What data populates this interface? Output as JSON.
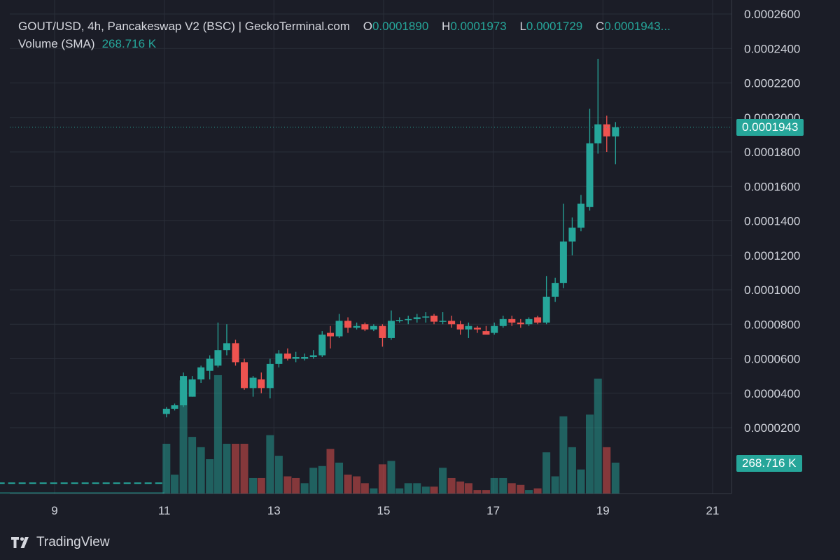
{
  "header": {
    "symbol_line": "GOUT/USD, 4h, Pancakeswap V2 (BSC) | GeckoTerminal.com",
    "o_label": "O",
    "o_value": "0.0001890",
    "h_label": "H",
    "h_value": "0.0001973",
    "l_label": "L",
    "l_value": "0.0001729",
    "c_label": "C",
    "c_value": "0.0001943..."
  },
  "volume_legend": {
    "label": "Volume (SMA)",
    "value": "268.716 K"
  },
  "price_tag": "0.0001943",
  "volume_tag": "268.716 K",
  "branding": {
    "logo_icon": "tradingview-logo-icon",
    "text": "TradingView"
  },
  "colors": {
    "up": "#26a69a",
    "down": "#ef5350",
    "background": "#1b1d27",
    "grid": "#2a2e39",
    "text": "#d1d4dc"
  },
  "chart_data": {
    "type": "candlestick",
    "interval": "4h",
    "x_tick_labels": [
      "9",
      "11",
      "13",
      "15",
      "17",
      "19",
      "21"
    ],
    "x_tick_days": [
      9,
      11,
      13,
      15,
      17,
      19,
      21
    ],
    "y_tick_labels": [
      "0.0000200",
      "0.0000400",
      "0.0000600",
      "0.0000800",
      "0.0001000",
      "0.0001200",
      "0.0001400",
      "0.0001600",
      "0.0001800",
      "0.0002000",
      "0.0002200",
      "0.0002400",
      "0.0002600"
    ],
    "ylim": [
      -3.85e-05,
      0.00026
    ],
    "grid": true,
    "last_price": 0.0001943,
    "volume_sma_last": 268716,
    "candles": [
      {
        "day": 11.04,
        "o": 2.8e-05,
        "h": 3.2e-05,
        "l": 2.6e-05,
        "c": 3.1e-05
      },
      {
        "day": 11.19,
        "o": 3.1e-05,
        "h": 3.4e-05,
        "l": 3e-05,
        "c": 3.3e-05
      },
      {
        "day": 11.35,
        "o": 3.3e-05,
        "h": 5.2e-05,
        "l": 3.2e-05,
        "c": 5e-05
      },
      {
        "day": 11.51,
        "o": 3.8e-05,
        "h": 5e-05,
        "l": 3.8e-05,
        "c": 4.8e-05
      },
      {
        "day": 11.67,
        "o": 4.8e-05,
        "h": 5.6e-05,
        "l": 4.6e-05,
        "c": 5.5e-05
      },
      {
        "day": 11.83,
        "o": 5.3e-05,
        "h": 6.2e-05,
        "l": 4.8e-05,
        "c": 6e-05
      },
      {
        "day": 11.98,
        "o": 5.6e-05,
        "h": 8.1e-05,
        "l": 5.5e-05,
        "c": 6.5e-05
      },
      {
        "day": 12.14,
        "o": 6.5e-05,
        "h": 8e-05,
        "l": 6.2e-05,
        "c": 6.9e-05
      },
      {
        "day": 12.3,
        "o": 6.9e-05,
        "h": 7.1e-05,
        "l": 5.6e-05,
        "c": 5.8e-05
      },
      {
        "day": 12.46,
        "o": 5.8e-05,
        "h": 6e-05,
        "l": 4.2e-05,
        "c": 4.3e-05
      },
      {
        "day": 12.62,
        "o": 4.3e-05,
        "h": 5e-05,
        "l": 3.8e-05,
        "c": 4.9e-05
      },
      {
        "day": 12.77,
        "o": 4.8e-05,
        "h": 5.2e-05,
        "l": 4e-05,
        "c": 4.3e-05
      },
      {
        "day": 12.93,
        "o": 4.3e-05,
        "h": 6e-05,
        "l": 3.7e-05,
        "c": 5.7e-05
      },
      {
        "day": 13.09,
        "o": 5.7e-05,
        "h": 6.5e-05,
        "l": 5.5e-05,
        "c": 6.3e-05
      },
      {
        "day": 13.25,
        "o": 6.3e-05,
        "h": 6.6e-05,
        "l": 5.9e-05,
        "c": 6e-05
      },
      {
        "day": 13.4,
        "o": 6e-05,
        "h": 6.4e-05,
        "l": 5.8e-05,
        "c": 6.1e-05
      },
      {
        "day": 13.56,
        "o": 6e-05,
        "h": 6.3e-05,
        "l": 5.9e-05,
        "c": 6.1e-05
      },
      {
        "day": 13.72,
        "o": 6.1e-05,
        "h": 6.5e-05,
        "l": 6e-05,
        "c": 6.2e-05
      },
      {
        "day": 13.88,
        "o": 6.2e-05,
        "h": 7.6e-05,
        "l": 6.1e-05,
        "c": 7.4e-05
      },
      {
        "day": 14.03,
        "o": 7.5e-05,
        "h": 7.9e-05,
        "l": 6.6e-05,
        "c": 7.3e-05
      },
      {
        "day": 14.19,
        "o": 7.3e-05,
        "h": 8.6e-05,
        "l": 7.2e-05,
        "c": 8.2e-05
      },
      {
        "day": 14.35,
        "o": 8.2e-05,
        "h": 8.4e-05,
        "l": 7.5e-05,
        "c": 7.8e-05
      },
      {
        "day": 14.51,
        "o": 7.8e-05,
        "h": 8.1e-05,
        "l": 7.7e-05,
        "c": 7.9e-05
      },
      {
        "day": 14.66,
        "o": 8e-05,
        "h": 8.1e-05,
        "l": 7.6e-05,
        "c": 7.7e-05
      },
      {
        "day": 14.82,
        "o": 7.7e-05,
        "h": 8e-05,
        "l": 7.6e-05,
        "c": 7.9e-05
      },
      {
        "day": 14.98,
        "o": 7.9e-05,
        "h": 8e-05,
        "l": 6.7e-05,
        "c": 7.2e-05
      },
      {
        "day": 15.14,
        "o": 7.2e-05,
        "h": 8.8e-05,
        "l": 7.1e-05,
        "c": 8.2e-05
      },
      {
        "day": 15.29,
        "o": 8.2e-05,
        "h": 8.4e-05,
        "l": 8.1e-05,
        "c": 8.25e-05
      },
      {
        "day": 15.45,
        "o": 8.25e-05,
        "h": 8.5e-05,
        "l": 8e-05,
        "c": 8.3e-05
      },
      {
        "day": 15.61,
        "o": 8.3e-05,
        "h": 8.6e-05,
        "l": 8.1e-05,
        "c": 8.4e-05
      },
      {
        "day": 15.77,
        "o": 8.4e-05,
        "h": 8.7e-05,
        "l": 8.1e-05,
        "c": 8.45e-05
      },
      {
        "day": 15.92,
        "o": 8.5e-05,
        "h": 8.6e-05,
        "l": 8e-05,
        "c": 8.15e-05
      },
      {
        "day": 16.08,
        "o": 8.15e-05,
        "h": 8.7e-05,
        "l": 8e-05,
        "c": 8.2e-05
      },
      {
        "day": 16.24,
        "o": 8.2e-05,
        "h": 8.5e-05,
        "l": 7.8e-05,
        "c": 8e-05
      },
      {
        "day": 16.4,
        "o": 8e-05,
        "h": 8.2e-05,
        "l": 7.4e-05,
        "c": 7.7e-05
      },
      {
        "day": 16.55,
        "o": 7.7e-05,
        "h": 8.1e-05,
        "l": 7.2e-05,
        "c": 7.9e-05
      },
      {
        "day": 16.71,
        "o": 7.8e-05,
        "h": 7.9e-05,
        "l": 7.5e-05,
        "c": 7.7e-05
      },
      {
        "day": 16.87,
        "o": 7.6e-05,
        "h": 7.9e-05,
        "l": 7.4e-05,
        "c": 7.4e-05
      },
      {
        "day": 17.02,
        "o": 7.5e-05,
        "h": 8.1e-05,
        "l": 7.4e-05,
        "c": 7.9e-05
      },
      {
        "day": 17.18,
        "o": 7.9e-05,
        "h": 8.5e-05,
        "l": 7.8e-05,
        "c": 8.3e-05
      },
      {
        "day": 17.34,
        "o": 8.3e-05,
        "h": 8.5e-05,
        "l": 7.9e-05,
        "c": 8.1e-05
      },
      {
        "day": 17.5,
        "o": 8.1e-05,
        "h": 8.3e-05,
        "l": 7.8e-05,
        "c": 8e-05
      },
      {
        "day": 17.65,
        "o": 8e-05,
        "h": 8.4e-05,
        "l": 7.9e-05,
        "c": 8.3e-05
      },
      {
        "day": 17.81,
        "o": 8.4e-05,
        "h": 8.5e-05,
        "l": 8e-05,
        "c": 8.1e-05
      },
      {
        "day": 17.97,
        "o": 8.1e-05,
        "h": 0.000108,
        "l": 8e-05,
        "c": 9.6e-05
      },
      {
        "day": 18.13,
        "o": 9.6e-05,
        "h": 0.000107,
        "l": 9.3e-05,
        "c": 0.000104
      },
      {
        "day": 18.28,
        "o": 0.000104,
        "h": 0.00015,
        "l": 0.000101,
        "c": 0.000128
      },
      {
        "day": 18.44,
        "o": 0.000128,
        "h": 0.000142,
        "l": 0.00012,
        "c": 0.000136
      },
      {
        "day": 18.6,
        "o": 0.000136,
        "h": 0.000155,
        "l": 0.000134,
        "c": 0.00015
      },
      {
        "day": 18.76,
        "o": 0.000148,
        "h": 0.000205,
        "l": 0.000146,
        "c": 0.000185
      },
      {
        "day": 18.91,
        "o": 0.000185,
        "h": 0.000234,
        "l": 0.000179,
        "c": 0.000196
      },
      {
        "day": 19.07,
        "o": 0.000196,
        "h": 0.000201,
        "l": 0.00018,
        "c": 0.000189
      },
      {
        "day": 19.23,
        "o": 0.000189,
        "h": 0.0001973,
        "l": 0.0001729,
        "c": 0.0001943
      }
    ],
    "volume_bars": [
      {
        "day": 11.04,
        "v": 290000,
        "up": true
      },
      {
        "day": 11.19,
        "v": 110000,
        "up": true
      },
      {
        "day": 11.35,
        "v": 660000,
        "up": true
      },
      {
        "day": 11.51,
        "v": 330000,
        "up": true
      },
      {
        "day": 11.67,
        "v": 270000,
        "up": true
      },
      {
        "day": 11.83,
        "v": 200000,
        "up": true
      },
      {
        "day": 11.98,
        "v": 690000,
        "up": true
      },
      {
        "day": 12.14,
        "v": 290000,
        "up": true
      },
      {
        "day": 12.3,
        "v": 290000,
        "up": false
      },
      {
        "day": 12.46,
        "v": 290000,
        "up": false
      },
      {
        "day": 12.62,
        "v": 90000,
        "up": true
      },
      {
        "day": 12.77,
        "v": 90000,
        "up": false
      },
      {
        "day": 12.93,
        "v": 340000,
        "up": true
      },
      {
        "day": 13.09,
        "v": 220000,
        "up": true
      },
      {
        "day": 13.25,
        "v": 100000,
        "up": false
      },
      {
        "day": 13.4,
        "v": 90000,
        "up": false
      },
      {
        "day": 13.56,
        "v": 60000,
        "up": true
      },
      {
        "day": 13.72,
        "v": 150000,
        "up": true
      },
      {
        "day": 13.88,
        "v": 160000,
        "up": true
      },
      {
        "day": 14.03,
        "v": 260000,
        "up": false
      },
      {
        "day": 14.19,
        "v": 180000,
        "up": true
      },
      {
        "day": 14.35,
        "v": 110000,
        "up": false
      },
      {
        "day": 14.51,
        "v": 100000,
        "up": false
      },
      {
        "day": 14.66,
        "v": 60000,
        "up": false
      },
      {
        "day": 14.82,
        "v": 30000,
        "up": true
      },
      {
        "day": 14.98,
        "v": 170000,
        "up": false
      },
      {
        "day": 15.14,
        "v": 190000,
        "up": true
      },
      {
        "day": 15.29,
        "v": 30000,
        "up": true
      },
      {
        "day": 15.45,
        "v": 60000,
        "up": true
      },
      {
        "day": 15.61,
        "v": 60000,
        "up": true
      },
      {
        "day": 15.77,
        "v": 40000,
        "up": true
      },
      {
        "day": 15.92,
        "v": 40000,
        "up": false
      },
      {
        "day": 16.08,
        "v": 150000,
        "up": true
      },
      {
        "day": 16.24,
        "v": 90000,
        "up": false
      },
      {
        "day": 16.4,
        "v": 70000,
        "up": false
      },
      {
        "day": 16.55,
        "v": 60000,
        "up": false
      },
      {
        "day": 16.71,
        "v": 20000,
        "up": false
      },
      {
        "day": 16.87,
        "v": 20000,
        "up": false
      },
      {
        "day": 17.02,
        "v": 90000,
        "up": true
      },
      {
        "day": 17.18,
        "v": 90000,
        "up": true
      },
      {
        "day": 17.34,
        "v": 60000,
        "up": false
      },
      {
        "day": 17.5,
        "v": 50000,
        "up": false
      },
      {
        "day": 17.65,
        "v": 20000,
        "up": true
      },
      {
        "day": 17.81,
        "v": 30000,
        "up": false
      },
      {
        "day": 17.97,
        "v": 240000,
        "up": true
      },
      {
        "day": 18.13,
        "v": 100000,
        "up": true
      },
      {
        "day": 18.28,
        "v": 450000,
        "up": true
      },
      {
        "day": 18.44,
        "v": 270000,
        "up": true
      },
      {
        "day": 18.6,
        "v": 140000,
        "up": true
      },
      {
        "day": 18.76,
        "v": 460000,
        "up": true
      },
      {
        "day": 18.91,
        "v": 670000,
        "up": true
      },
      {
        "day": 19.07,
        "v": 270000,
        "up": false
      },
      {
        "day": 19.23,
        "v": 180000,
        "up": true
      }
    ],
    "volume_sma_line": {
      "day_start": 8.0,
      "day_end": 11.0,
      "v": 60000
    },
    "volume_baseline": {
      "day_start": 8.0,
      "day_end": 11.0,
      "v": 3000
    }
  }
}
